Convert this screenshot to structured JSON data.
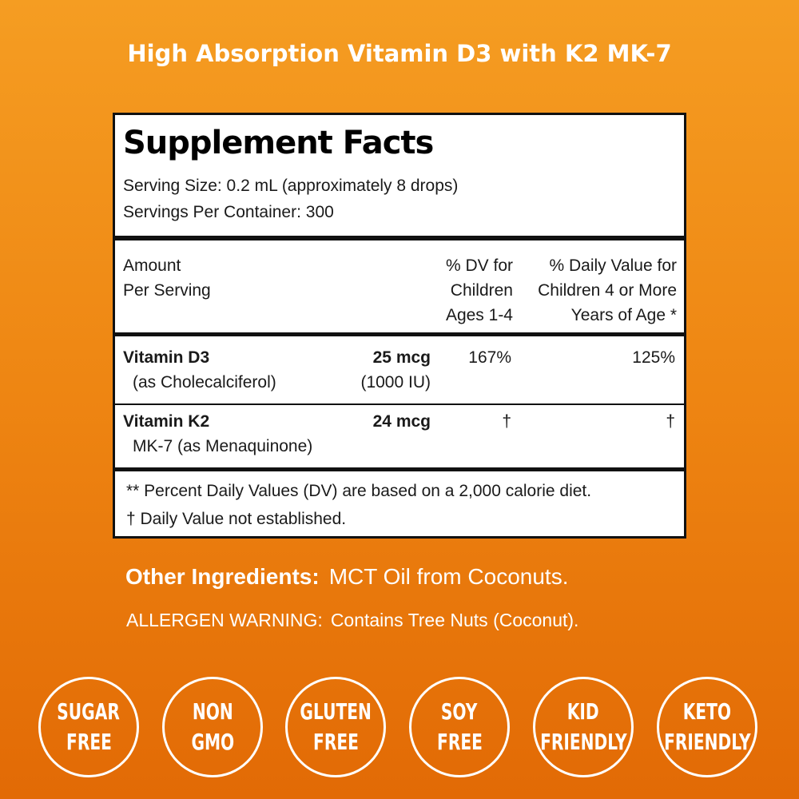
{
  "headline": "High Absorption Vitamin D3 with K2 MK-7",
  "facts": {
    "title": "Supplement Facts",
    "serving_size": "Serving Size: 0.2 mL (approximately 8 drops)",
    "servings_per_container": "Servings Per Container: 300",
    "header": {
      "amount_1": "Amount",
      "amount_2": "Per Serving",
      "dv_child_1": "% DV for",
      "dv_child_2": "Children",
      "dv_child_3": "Ages 1-4",
      "dv_4_1": "% Daily Value for",
      "dv_4_2": "Children 4 or More",
      "dv_4_3": "Years of Age *"
    },
    "rows": [
      {
        "name": "Vitamin D3",
        "sub": "(as Cholecalciferol)",
        "amount": "25 mcg",
        "amount_sub": "(1000 IU)",
        "dv_child": "167%",
        "dv_4": "125%"
      },
      {
        "name": "Vitamin K2",
        "sub": "MK-7 (as Menaquinone)",
        "amount": "24 mcg",
        "amount_sub": "",
        "dv_child": "†",
        "dv_4": "†"
      }
    ],
    "footnote_1": "** Percent Daily Values (DV) are based on a 2,000 calorie diet.",
    "footnote_2": "† Daily Value not established."
  },
  "other_ingredients": {
    "label": "Other Ingredients:",
    "value": "MCT Oil from Coconuts."
  },
  "allergen": {
    "label": "ALLERGEN WARNING:",
    "value": "Contains Tree Nuts (Coconut)."
  },
  "badges": [
    {
      "l1": "SUGAR",
      "l2": "FREE"
    },
    {
      "l1": "NON",
      "l2": "GMO"
    },
    {
      "l1": "GLUTEN",
      "l2": "FREE"
    },
    {
      "l1": "SOY",
      "l2": "FREE"
    },
    {
      "l1": "KID",
      "l2": "FRIENDLY"
    },
    {
      "l1": "KETO",
      "l2": "FRIENDLY"
    }
  ],
  "colors": {
    "background_top": "#f59d22",
    "background_bottom": "#e26a05",
    "panel": "#ffffff",
    "text": "#111111"
  }
}
